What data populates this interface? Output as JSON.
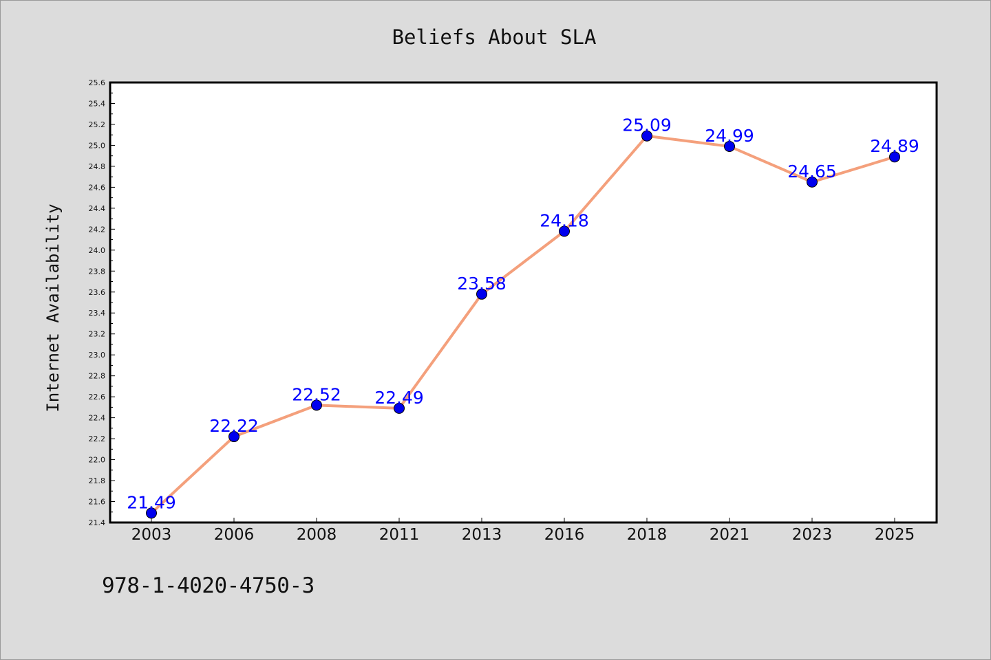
{
  "chart_data": {
    "type": "line",
    "title": "Beliefs About SLA",
    "xlabel": "",
    "ylabel": "Internet Availability",
    "categories": [
      "2003",
      "2006",
      "2008",
      "2011",
      "2013",
      "2016",
      "2018",
      "2021",
      "2023",
      "2025"
    ],
    "values": [
      21.49,
      22.22,
      22.52,
      22.49,
      23.58,
      24.18,
      25.09,
      24.99,
      24.65,
      24.89
    ],
    "data_labels": [
      "21.49",
      "22.22",
      "22.52",
      "22.49",
      "23.58",
      "24.18",
      "25.09",
      "24.99",
      "24.65",
      "24.89"
    ],
    "ylim": [
      21.4,
      25.6
    ],
    "yticks": [
      "21.4",
      "21.6",
      "21.8",
      "22.0",
      "22.2",
      "22.4",
      "22.6",
      "22.8",
      "23.0",
      "23.2",
      "23.4",
      "23.6",
      "23.8",
      "24.0",
      "24.2",
      "24.4",
      "24.6",
      "24.8",
      "25.0",
      "25.2",
      "25.4",
      "25.6"
    ],
    "grid": false,
    "legend": "none",
    "line_color": "#f4a07c",
    "marker_color": "#0000ee",
    "label_color": "#0000ff",
    "background": "#dcdcdc",
    "plot_background": "#ffffff"
  },
  "caption": "978-1-4020-4750-3"
}
